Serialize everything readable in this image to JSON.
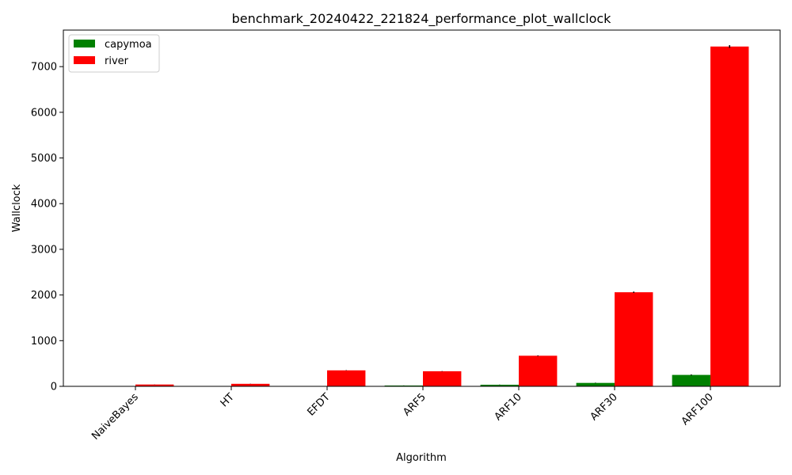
{
  "chart_data": {
    "type": "bar",
    "title": "benchmark_20240422_221824_performance_plot_wallclock",
    "xlabel": "Algorithm",
    "ylabel": "Wallclock",
    "categories": [
      "NaiveBayes",
      "HT",
      "EFDT",
      "ARF5",
      "ARF10",
      "ARF30",
      "ARF100"
    ],
    "series": [
      {
        "name": "capymoa",
        "color": "#008000",
        "values": [
          2,
          3,
          6,
          18,
          35,
          75,
          250
        ],
        "errors": [
          0.5,
          0.5,
          1,
          2,
          3,
          5,
          10
        ]
      },
      {
        "name": "river",
        "color": "#ff0000",
        "values": [
          40,
          55,
          350,
          330,
          670,
          2060,
          7440
        ],
        "errors": [
          2,
          2,
          4,
          4,
          8,
          15,
          30
        ]
      }
    ],
    "ylim": [
      0,
      7800
    ],
    "yticks": [
      0,
      1000,
      2000,
      3000,
      4000,
      5000,
      6000,
      7000
    ],
    "legend_position": "top-left",
    "grid": false
  }
}
